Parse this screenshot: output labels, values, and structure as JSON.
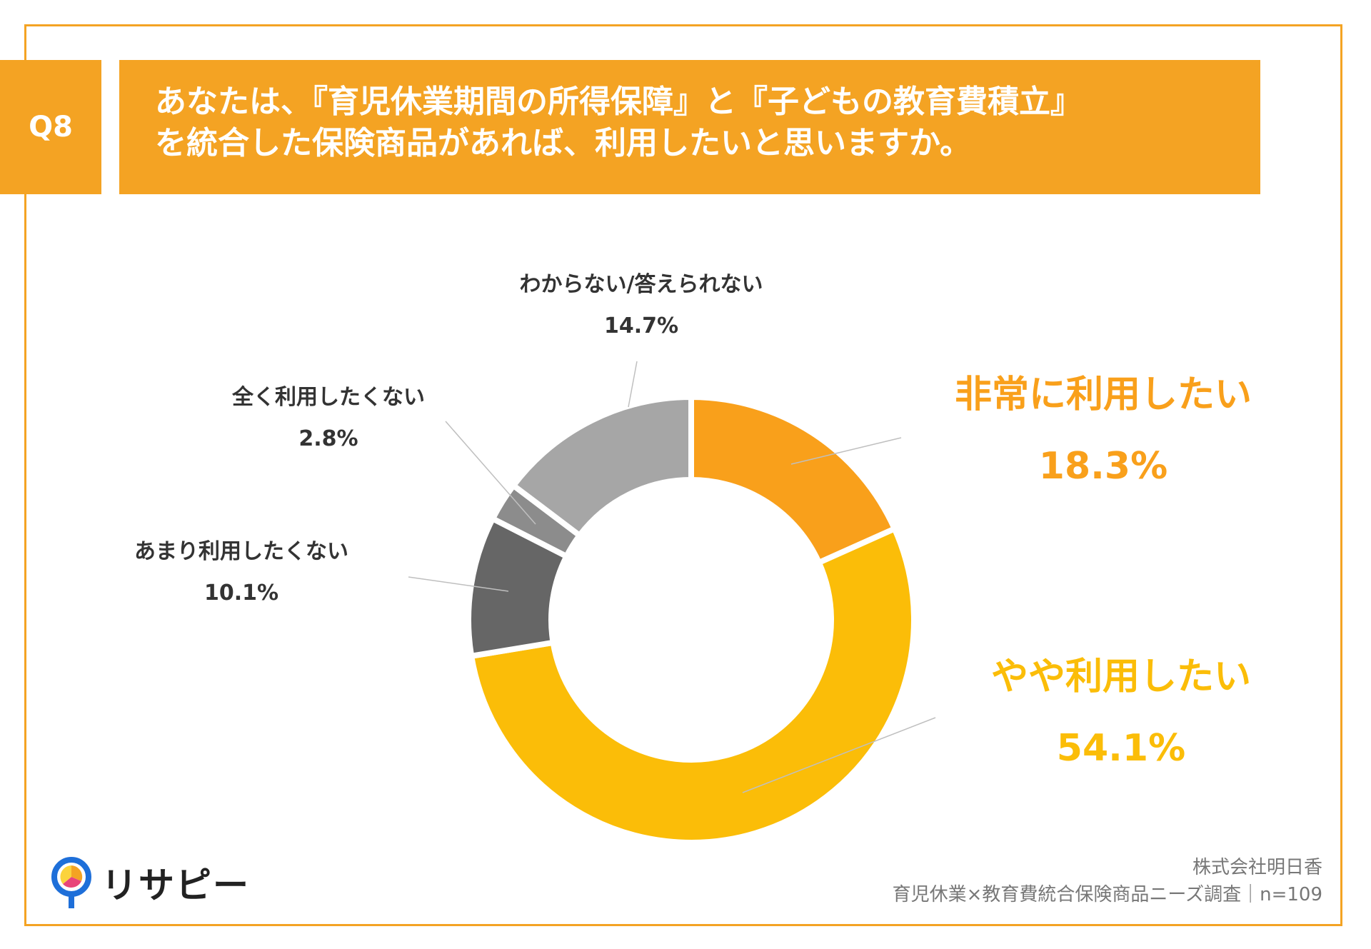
{
  "header": {
    "badge": "Q8",
    "title_line1": "あなたは、『育児休業期間の所得保障』と『子どもの教育費積立』",
    "title_line2": "を統合した保険商品があれば、利用したいと思いますか。"
  },
  "chart_data": {
    "type": "pie",
    "style": "donut",
    "slices": [
      {
        "label": "非常に利用したい",
        "value_text": "18.3%",
        "value": 18.3,
        "color": "#F9A01B"
      },
      {
        "label": "やや利用したい",
        "value_text": "54.1%",
        "value": 54.1,
        "color": "#FBBD08"
      },
      {
        "label": "あまり利用したくない",
        "value_text": "10.1%",
        "value": 10.1,
        "color": "#666666"
      },
      {
        "label": "全く利用したくない",
        "value_text": "2.8%",
        "value": 2.8,
        "color": "#8C8C8C"
      },
      {
        "label": "わからない/答えられない",
        "value_text": "14.7%",
        "value": 14.7,
        "color": "#A6A6A6"
      }
    ]
  },
  "footer": {
    "logo_text": "リサピー",
    "source_line1": "株式会社明日香",
    "source_line2": "育児休業×教育費統合保険商品ニーズ調査｜n=109"
  },
  "colors": {
    "accent": "#F4A323",
    "strong_orange": "#F9A01B",
    "yellow": "#FBBD08"
  }
}
